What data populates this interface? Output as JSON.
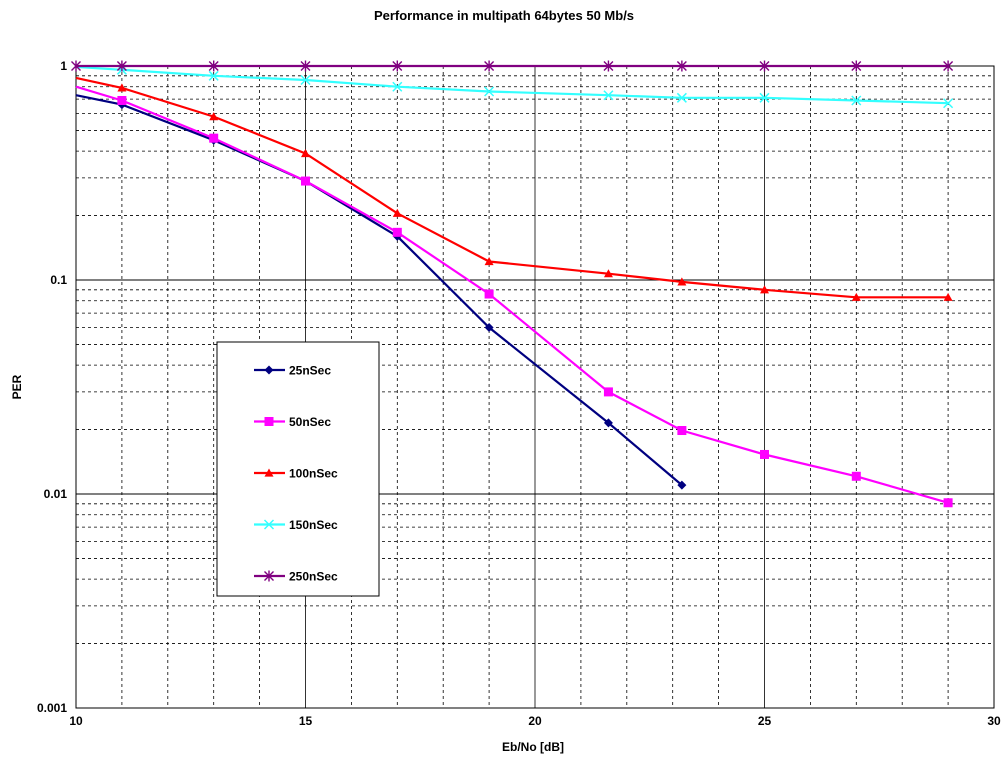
{
  "chart_data": {
    "type": "line",
    "title": "Performance in multipath 64bytes 50 Mb/s",
    "xlabel": "Eb/No [dB]",
    "ylabel": "PER",
    "xlim": [
      10,
      30
    ],
    "ylim": [
      0.001,
      1
    ],
    "yscale": "log",
    "x_ticks": [
      "10",
      "15",
      "20",
      "25",
      "30"
    ],
    "y_ticks": [
      "0.001",
      "0.01",
      "0.1",
      "1"
    ],
    "grid": true,
    "legend_position": "center-left",
    "series": [
      {
        "name": "25nSec",
        "color": "#000080",
        "marker": "diamond",
        "points": [
          [
            10,
            0.73
          ],
          [
            11,
            0.66
          ],
          [
            13,
            0.45
          ],
          [
            15,
            0.29
          ],
          [
            17,
            0.16
          ],
          [
            19,
            0.06
          ],
          [
            21.6,
            0.0215
          ],
          [
            23.2,
            0.011
          ]
        ]
      },
      {
        "name": "50nSec",
        "color": "#ff00ff",
        "marker": "square",
        "points": [
          [
            10,
            0.8
          ],
          [
            11,
            0.69
          ],
          [
            13,
            0.46
          ],
          [
            15,
            0.29
          ],
          [
            17,
            0.167
          ],
          [
            19,
            0.086
          ],
          [
            21.6,
            0.03
          ],
          [
            23.2,
            0.0198
          ],
          [
            25,
            0.0153
          ],
          [
            27,
            0.0121
          ],
          [
            29,
            0.0091
          ]
        ]
      },
      {
        "name": "100nSec",
        "color": "#ff0000",
        "marker": "triangle",
        "points": [
          [
            10,
            0.88
          ],
          [
            11,
            0.79
          ],
          [
            13,
            0.58
          ],
          [
            15,
            0.39
          ],
          [
            17,
            0.205
          ],
          [
            19,
            0.122
          ],
          [
            21.6,
            0.107
          ],
          [
            23.2,
            0.098
          ],
          [
            25,
            0.09
          ],
          [
            27,
            0.083
          ],
          [
            29,
            0.083
          ]
        ]
      },
      {
        "name": "150nSec",
        "color": "#33ffff",
        "marker": "x",
        "points": [
          [
            10,
            0.99
          ],
          [
            11,
            0.96
          ],
          [
            13,
            0.9
          ],
          [
            15,
            0.86
          ],
          [
            17,
            0.8
          ],
          [
            19,
            0.76
          ],
          [
            21.6,
            0.73
          ],
          [
            23.2,
            0.71
          ],
          [
            25,
            0.71
          ],
          [
            27,
            0.69
          ],
          [
            29,
            0.67
          ]
        ]
      },
      {
        "name": "250nSec",
        "color": "#800080",
        "marker": "star",
        "points": [
          [
            10,
            1.0
          ],
          [
            11,
            1.0
          ],
          [
            13,
            1.0
          ],
          [
            15,
            1.0
          ],
          [
            17,
            1.0
          ],
          [
            19,
            1.0
          ],
          [
            21.6,
            1.0
          ],
          [
            23.2,
            1.0
          ],
          [
            25,
            1.0
          ],
          [
            27,
            1.0
          ],
          [
            29,
            1.0
          ]
        ]
      }
    ]
  }
}
